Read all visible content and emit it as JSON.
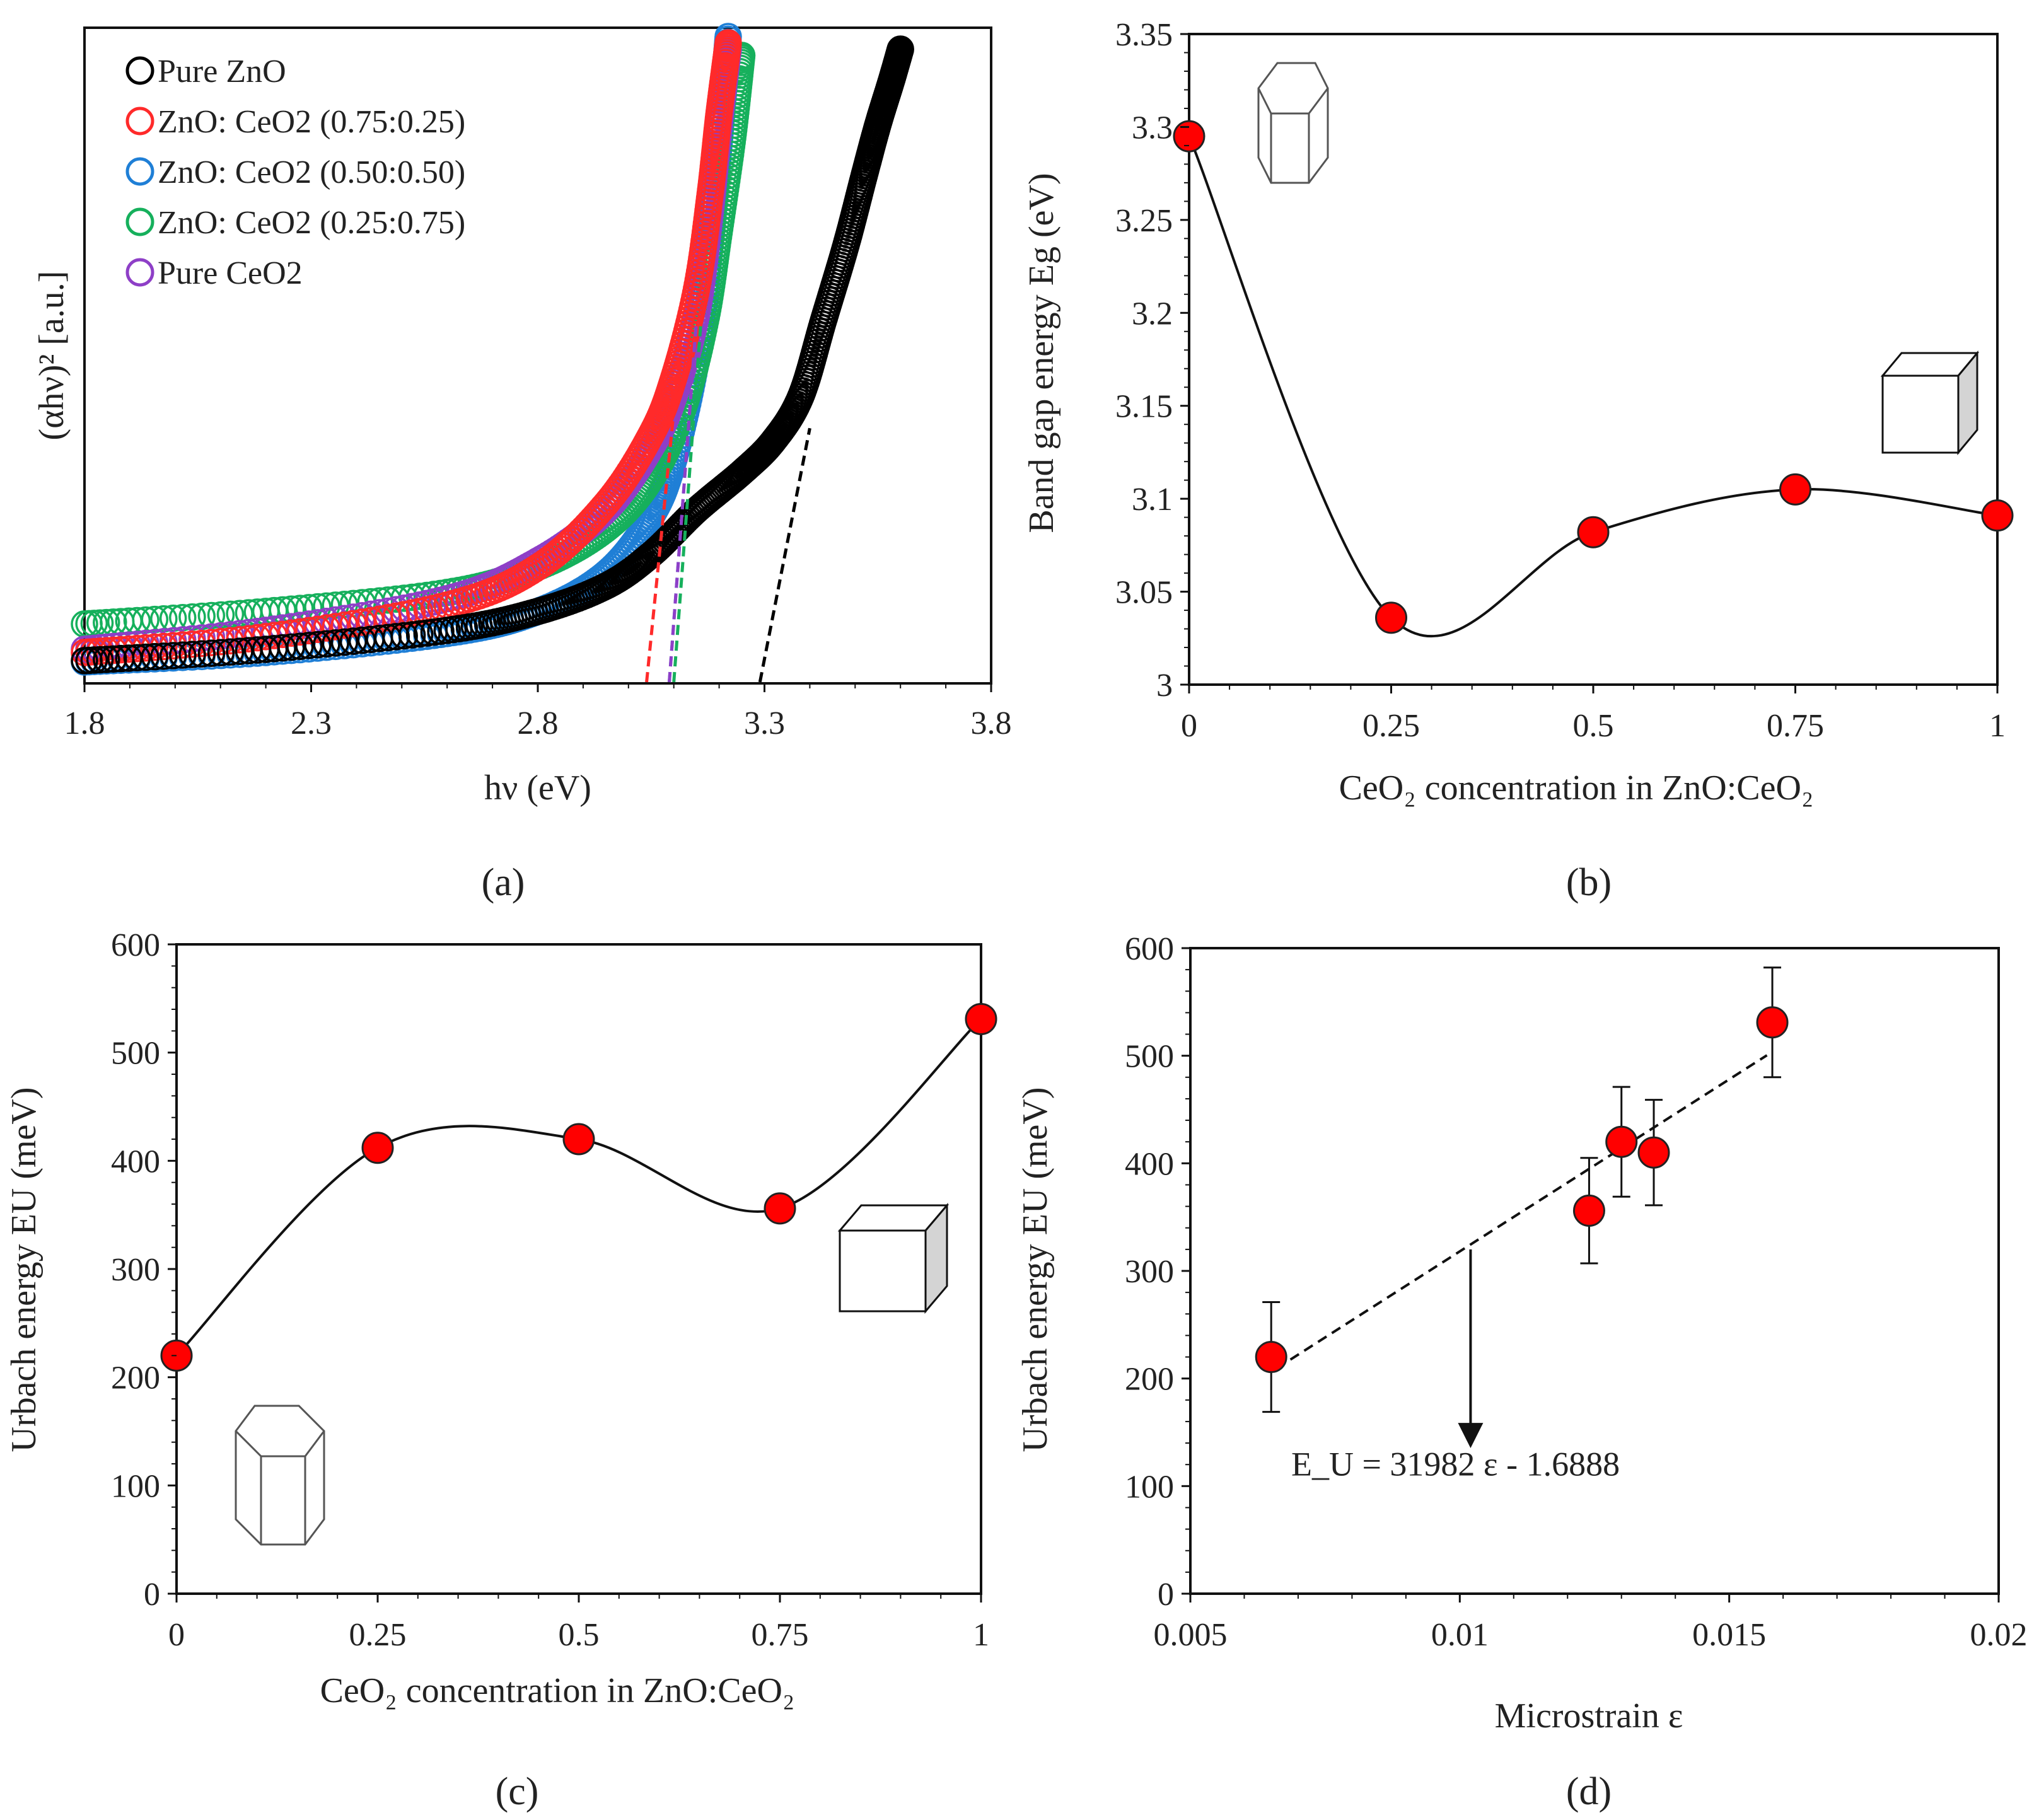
{
  "figure": {
    "panel_captions": [
      "(a)",
      "(b)",
      "(c)",
      "(d)"
    ]
  },
  "colors": {
    "axis": "#111111",
    "marker_fill": "#ff0000",
    "marker_stroke": "#222222",
    "series_pure_zno": "#000000",
    "series_075_025": "#ff2a2a",
    "series_050_050": "#1f7fd6",
    "series_025_075": "#16b05c",
    "series_pure_ceo2": "#8e3fc7"
  },
  "chart_data": [
    {
      "id": "a",
      "type": "scatter",
      "title": "",
      "xlabel": "hν (eV)",
      "ylabel": "(αhν)² [a.u.]",
      "xlim": [
        1.8,
        3.8
      ],
      "ylim": [
        0,
        1
      ],
      "xticks": [
        1.8,
        2.3,
        2.8,
        3.3,
        3.8
      ],
      "xtick_labels": [
        "1.8",
        "2.3",
        "2.8",
        "3.3",
        "3.8"
      ],
      "legend_position": "top-left",
      "marker": "open-circle",
      "series": [
        {
          "name": "Pure ZnO",
          "color": "#000000",
          "x": [
            1.8,
            2.2,
            2.6,
            2.8,
            2.95,
            3.05,
            3.15,
            3.25,
            3.32,
            3.38,
            3.43,
            3.48,
            3.52,
            3.55,
            3.58,
            3.6
          ],
          "y": [
            0.012,
            0.03,
            0.06,
            0.09,
            0.13,
            0.18,
            0.25,
            0.31,
            0.36,
            0.43,
            0.55,
            0.67,
            0.78,
            0.86,
            0.93,
            0.98
          ],
          "tangent": {
            "x": [
              3.29,
              3.4
            ],
            "y": [
              0.0,
              0.38
            ]
          }
        },
        {
          "name": "ZnO: CeO2 (0.75:0.25)",
          "color": "#ff2a2a",
          "x": [
            1.8,
            2.2,
            2.6,
            2.8,
            2.95,
            3.05,
            3.1,
            3.15,
            3.18,
            3.2,
            3.22
          ],
          "y": [
            0.025,
            0.05,
            0.1,
            0.16,
            0.26,
            0.37,
            0.46,
            0.6,
            0.75,
            0.88,
            0.99
          ],
          "tangent": {
            "x": [
              3.04,
              3.12
            ],
            "y": [
              0.0,
              0.55
            ]
          }
        },
        {
          "name": "ZnO: CeO2 (0.50:0.50)",
          "color": "#1f7fd6",
          "x": [
            1.8,
            2.2,
            2.6,
            2.8,
            2.95,
            3.05,
            3.1,
            3.15,
            3.18,
            3.2,
            3.22
          ],
          "y": [
            0.01,
            0.025,
            0.055,
            0.09,
            0.15,
            0.24,
            0.33,
            0.49,
            0.67,
            0.83,
            1.0
          ],
          "tangent": {
            "x": [
              3.09,
              3.15
            ],
            "y": [
              0.0,
              0.55
            ]
          }
        },
        {
          "name": "ZnO: CeO2 (0.25:0.75)",
          "color": "#16b05c",
          "x": [
            1.8,
            2.2,
            2.6,
            2.8,
            2.95,
            3.05,
            3.12,
            3.17,
            3.2,
            3.23,
            3.25
          ],
          "y": [
            0.07,
            0.09,
            0.12,
            0.16,
            0.22,
            0.3,
            0.41,
            0.55,
            0.69,
            0.84,
            0.97
          ],
          "tangent": {
            "x": [
              3.1,
              3.16
            ],
            "y": [
              0.0,
              0.55
            ]
          }
        },
        {
          "name": "Pure CeO2",
          "color": "#8e3fc7",
          "x": [
            1.8,
            2.2,
            2.6,
            2.8,
            2.95,
            3.05,
            3.1,
            3.15,
            3.18,
            3.2,
            3.22
          ],
          "y": [
            0.03,
            0.06,
            0.11,
            0.17,
            0.25,
            0.35,
            0.43,
            0.56,
            0.72,
            0.86,
            0.98
          ],
          "tangent": {
            "x": [
              3.09,
              3.15
            ],
            "y": [
              0.0,
              0.55
            ]
          }
        }
      ]
    },
    {
      "id": "b",
      "type": "scatter",
      "title": "",
      "xlabel": "CeO₂ concentration in ZnO:CeO₂",
      "ylabel": "Band gap energy Eg (eV)",
      "xlim": [
        0,
        1
      ],
      "ylim": [
        3.0,
        3.35
      ],
      "xticks": [
        0,
        0.25,
        0.5,
        0.75,
        1
      ],
      "xtick_labels": [
        "0",
        "0.25",
        "0.5",
        "0.75",
        "1"
      ],
      "yticks": [
        3.0,
        3.05,
        3.1,
        3.15,
        3.2,
        3.25,
        3.3,
        3.35
      ],
      "ytick_labels": [
        "3",
        "3.05",
        "3.1",
        "3.15",
        "3.2",
        "3.25",
        "3.3",
        "3.35"
      ],
      "x": [
        0,
        0.25,
        0.5,
        0.75,
        1
      ],
      "y": [
        3.295,
        3.036,
        3.082,
        3.105,
        3.091
      ],
      "smooth_line": true,
      "icons": [
        "hexagonal-prism (ZnO) top-left",
        "cube (CeO2) right"
      ]
    },
    {
      "id": "c",
      "type": "scatter",
      "title": "",
      "xlabel": "CeO₂ concentration in ZnO:CeO₂",
      "ylabel": "Urbach energy EU (meV)",
      "xlim": [
        0,
        1
      ],
      "ylim": [
        0,
        600
      ],
      "xticks": [
        0,
        0.25,
        0.5,
        0.75,
        1
      ],
      "xtick_labels": [
        "0",
        "0.25",
        "0.5",
        "0.75",
        "1"
      ],
      "yticks": [
        0,
        100,
        200,
        300,
        400,
        500,
        600
      ],
      "ytick_labels": [
        "0",
        "100",
        "200",
        "300",
        "400",
        "500",
        "600"
      ],
      "x": [
        0,
        0.25,
        0.5,
        0.75,
        1
      ],
      "y": [
        220,
        412,
        420,
        356,
        531
      ],
      "smooth_line": true,
      "icons": [
        "cube (CeO2) right",
        "hexagonal-prism (ZnO) bottom-left"
      ]
    },
    {
      "id": "d",
      "type": "scatter",
      "title": "",
      "xlabel": "Microstrain ε",
      "ylabel": "Urbach energy EU (meV)",
      "xlim": [
        0.005,
        0.02
      ],
      "ylim": [
        0,
        600
      ],
      "xticks": [
        0.005,
        0.01,
        0.015,
        0.02
      ],
      "xtick_labels": [
        "0.005",
        "0.01",
        "0.015",
        "0.02"
      ],
      "yticks": [
        0,
        100,
        200,
        300,
        400,
        500,
        600
      ],
      "ytick_labels": [
        "0",
        "100",
        "200",
        "300",
        "400",
        "500",
        "600"
      ],
      "x": [
        0.0065,
        0.0124,
        0.013,
        0.0136,
        0.0158
      ],
      "y": [
        220,
        356,
        420,
        410,
        531
      ],
      "error": [
        51,
        49,
        51,
        49,
        51
      ],
      "fit": {
        "slope": 31982,
        "intercept": -1.6888,
        "x_range": [
          0.0066,
          0.0157
        ]
      },
      "annotation": "E_U = 31982 ε - 1.6888",
      "annotation_arrow": {
        "from": [
          0.0102,
          320
        ],
        "to": [
          0.0102,
          140
        ]
      }
    }
  ]
}
